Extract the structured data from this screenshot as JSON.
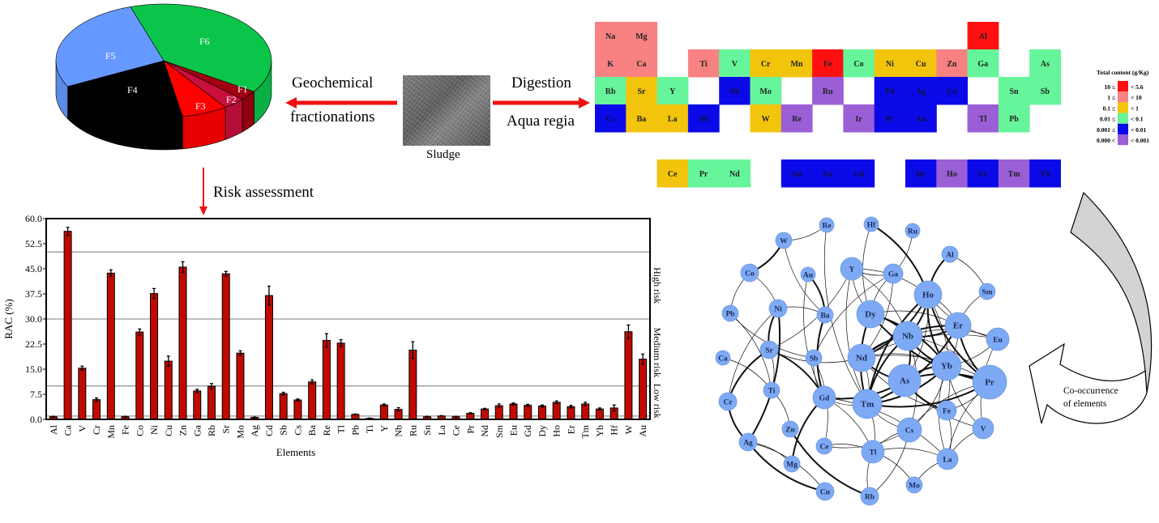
{
  "flow": {
    "left_arrow_top": "Geochemical",
    "left_arrow_bottom": "fractionations",
    "right_arrow_top": "Digestion",
    "right_arrow_bottom": "Aqua regia",
    "sample_label": "Sludge",
    "down_arrow_label": "Risk assessment",
    "network_arrow_line1": "Co-occurrence",
    "network_arrow_line2": "of elements",
    "arrow_color": "#ee1111"
  },
  "pie": {
    "type": "pie-3d",
    "slices": [
      {
        "label": "F6",
        "percent": 39.2,
        "color": "#0bc44a"
      },
      {
        "label": "F1",
        "percent": 2.8,
        "color": "#a00010"
      },
      {
        "label": "F2",
        "percent": 3.3,
        "color": "#c8103c"
      },
      {
        "label": "F3",
        "percent": 6.9,
        "color": "#ff0000"
      },
      {
        "label": "F4",
        "percent": 20.3,
        "color": "#000000"
      },
      {
        "label": "F5",
        "percent": 27.5,
        "color": "#6699ff"
      }
    ]
  },
  "periodic_table": {
    "legend_title": "Total content (g/Kg)",
    "levels": [
      {
        "low": "10 ≤",
        "high": "< 5.6",
        "color": "#ff1010"
      },
      {
        "low": "1 ≤",
        "high": "< 10",
        "color": "#f88282"
      },
      {
        "low": "0.1 ≤",
        "high": "< 1",
        "color": "#f2c40c"
      },
      {
        "low": "0.01 ≤",
        "high": "< 0.1",
        "color": "#66f59a"
      },
      {
        "low": "0.001 ≤",
        "high": "< 0.01",
        "color": "#0a0ae8"
      },
      {
        "low": "0.000 <",
        "high": "< 0.001",
        "color": "#9a5ed6"
      }
    ],
    "cells": [
      {
        "symbol": "Na",
        "level": 1
      },
      {
        "symbol": "Mg",
        "level": 1
      },
      {
        "symbol": "Al",
        "level": 0
      },
      {
        "symbol": "K",
        "level": 1
      },
      {
        "symbol": "Ca",
        "level": 1
      },
      {
        "symbol": "Ti",
        "level": 1
      },
      {
        "symbol": "V",
        "level": 3
      },
      {
        "symbol": "Cr",
        "level": 2
      },
      {
        "symbol": "Mn",
        "level": 2
      },
      {
        "symbol": "Fe",
        "level": 0
      },
      {
        "symbol": "Co",
        "level": 3
      },
      {
        "symbol": "Ni",
        "level": 2
      },
      {
        "symbol": "Cu",
        "level": 2
      },
      {
        "symbol": "Zn",
        "level": 1
      },
      {
        "symbol": "Ga",
        "level": 3
      },
      {
        "symbol": "As",
        "level": 3
      },
      {
        "symbol": "Rb",
        "level": 3
      },
      {
        "symbol": "Sr",
        "level": 2
      },
      {
        "symbol": "Y",
        "level": 3
      },
      {
        "symbol": "Nb",
        "level": 4
      },
      {
        "symbol": "Mo",
        "level": 3
      },
      {
        "symbol": "Ru",
        "level": 5
      },
      {
        "symbol": "Pd",
        "level": 4
      },
      {
        "symbol": "Ag",
        "level": 4
      },
      {
        "symbol": "Cd",
        "level": 4
      },
      {
        "symbol": "Sn",
        "level": 3
      },
      {
        "symbol": "Sb",
        "level": 3
      },
      {
        "symbol": "Cs",
        "level": 4
      },
      {
        "symbol": "Ba",
        "level": 2
      },
      {
        "symbol": "La",
        "level": 2
      },
      {
        "symbol": "Hf",
        "level": 4
      },
      {
        "symbol": "W",
        "level": 2
      },
      {
        "symbol": "Re",
        "level": 5
      },
      {
        "symbol": "Ir",
        "level": 5
      },
      {
        "symbol": "Pt",
        "level": 4
      },
      {
        "symbol": "Au",
        "level": 4
      },
      {
        "symbol": "Tl",
        "level": 5
      },
      {
        "symbol": "Pb",
        "level": 3
      },
      {
        "symbol": "Ce",
        "level": 2
      },
      {
        "symbol": "Pr",
        "level": 3
      },
      {
        "symbol": "Nd",
        "level": 3
      },
      {
        "symbol": "Sm",
        "level": 4
      },
      {
        "symbol": "Eu",
        "level": 4
      },
      {
        "symbol": "Gd",
        "level": 4
      },
      {
        "symbol": "Dy",
        "level": 4
      },
      {
        "symbol": "Ho",
        "level": 5
      },
      {
        "symbol": "Er",
        "level": 4
      },
      {
        "symbol": "Tm",
        "level": 5
      },
      {
        "symbol": "Yb",
        "level": 4
      }
    ]
  },
  "chart_data": {
    "type": "bar",
    "xlabel": "Elements",
    "ylabel": "RAC (%)",
    "ylim": [
      0,
      60
    ],
    "yticks": [
      "0.0",
      "7.5",
      "15.0",
      "22.5",
      "30.0",
      "37.5",
      "45.0",
      "52.5",
      "60.0"
    ],
    "bar_color": "#c00a00",
    "risk_thresholds": [
      1,
      10,
      30,
      50
    ],
    "risk_labels": [
      "Low risk",
      "Medium risk",
      "High risk"
    ],
    "categories": [
      "Al",
      "Ca",
      "V",
      "Cr",
      "Mn",
      "Fe",
      "Co",
      "Ni",
      "Cu",
      "Zn",
      "Ga",
      "Rb",
      "Sr",
      "Mo",
      "Ag",
      "Cd",
      "Sb",
      "Cs",
      "Ba",
      "Re",
      "Tl",
      "Pb",
      "Ti",
      "Y",
      "Nb",
      "Ru",
      "Sn",
      "La",
      "Ce",
      "Pr",
      "Nd",
      "Sm",
      "Eu",
      "Gd",
      "Dy",
      "Ho",
      "Er",
      "Tm",
      "Yb",
      "Hf",
      "W",
      "Au"
    ],
    "values": [
      0.8,
      56.2,
      15.3,
      5.9,
      43.7,
      0.8,
      26.1,
      37.6,
      17.4,
      45.5,
      8.5,
      9.9,
      43.5,
      19.8,
      0.6,
      37.0,
      7.7,
      5.8,
      11.2,
      23.6,
      22.8,
      1.5,
      0.3,
      4.3,
      3.0,
      20.7,
      0.8,
      1.0,
      0.8,
      1.8,
      3.1,
      4.1,
      4.6,
      4.2,
      4.0,
      5.1,
      3.8,
      4.6,
      3.1,
      3.4,
      26.2,
      18.0
    ],
    "errors": [
      0.1,
      1.2,
      0.6,
      0.5,
      1.0,
      0.1,
      0.9,
      1.5,
      1.5,
      1.6,
      0.5,
      0.8,
      0.7,
      0.7,
      0.1,
      2.8,
      0.4,
      0.3,
      0.6,
      2.0,
      1.0,
      0.1,
      0.1,
      0.3,
      0.5,
      2.5,
      0.1,
      0.1,
      0.1,
      0.2,
      0.2,
      0.5,
      0.3,
      0.3,
      0.3,
      0.4,
      0.4,
      0.5,
      0.3,
      0.9,
      2.0,
      1.5
    ]
  },
  "network": {
    "node_color": "#7eaaf5",
    "nodes": [
      "Re",
      "Hf",
      "Ru",
      "W",
      "Al",
      "Co",
      "Au",
      "Y",
      "Ga",
      "Sm",
      "Ho",
      "Pb",
      "Ni",
      "Ba",
      "Dy",
      "Er",
      "Eu",
      "Nb",
      "Sr",
      "Sb",
      "Ca",
      "Nd",
      "Yb",
      "As",
      "Pr",
      "Ti",
      "Cr",
      "Gd",
      "Tm",
      "Fe",
      "Cs",
      "V",
      "Zn",
      "Ag",
      "Ce",
      "Tl",
      "La",
      "Mg",
      "Mo",
      "Cu",
      "Rb"
    ],
    "edges": [
      [
        "Re",
        "W",
        1
      ],
      [
        "Re",
        "Tm",
        1
      ],
      [
        "W",
        "Co",
        2
      ],
      [
        "W",
        "Ba",
        1
      ],
      [
        "Co",
        "Ni",
        1
      ],
      [
        "Co",
        "Pb",
        1
      ],
      [
        "Au",
        "Ba",
        2
      ],
      [
        "Au",
        "Gd",
        1
      ],
      [
        "Hf",
        "Ho",
        2
      ],
      [
        "Hf",
        "Dy",
        1
      ],
      [
        "Ru",
        "Ga",
        1
      ],
      [
        "Al",
        "Ho",
        2
      ],
      [
        "Al",
        "Sm",
        1
      ],
      [
        "Y",
        "Ga",
        1
      ],
      [
        "Y",
        "Ho",
        1
      ],
      [
        "Y",
        "Dy",
        1
      ],
      [
        "Y",
        "Nb",
        1
      ],
      [
        "Y",
        "Tm",
        1
      ],
      [
        "Y",
        "Sr",
        1
      ],
      [
        "Ga",
        "Sb",
        1
      ],
      [
        "Ga",
        "Nd",
        1
      ],
      [
        "Ga",
        "Dy",
        1
      ],
      [
        "Ho",
        "Nb",
        2
      ],
      [
        "Ho",
        "Tm",
        2
      ],
      [
        "Ho",
        "Nd",
        2
      ],
      [
        "Ho",
        "Yb",
        2
      ],
      [
        "Ho",
        "As",
        1
      ],
      [
        "Ho",
        "Pr",
        2
      ],
      [
        "Ho",
        "Er",
        1
      ],
      [
        "Ho",
        "Eu",
        1
      ],
      [
        "Ho",
        "Fe",
        1
      ],
      [
        "Sm",
        "Er",
        1
      ],
      [
        "Ni",
        "Ba",
        1
      ],
      [
        "Ni",
        "Sr",
        2
      ],
      [
        "Ni",
        "Ag",
        2
      ],
      [
        "Ni",
        "Cr",
        1
      ],
      [
        "Pb",
        "Ti",
        1
      ],
      [
        "Pb",
        "Sb",
        1
      ],
      [
        "Ca",
        "Ti",
        1
      ],
      [
        "Sr",
        "Nd",
        1
      ],
      [
        "Sr",
        "Gd",
        2
      ],
      [
        "Sr",
        "Cr",
        2
      ],
      [
        "Sr",
        "Ti",
        1
      ],
      [
        "Ba",
        "Gd",
        2
      ],
      [
        "Sb",
        "Ce",
        1
      ],
      [
        "Sb",
        "Gd",
        1
      ],
      [
        "Dy",
        "Nb",
        2
      ],
      [
        "Dy",
        "Tm",
        2
      ],
      [
        "Dy",
        "Yb",
        2
      ],
      [
        "Dy",
        "Pr",
        2
      ],
      [
        "Dy",
        "Er",
        1
      ],
      [
        "Nb",
        "Tm",
        2
      ],
      [
        "Nb",
        "As",
        2
      ],
      [
        "Nb",
        "Er",
        2
      ],
      [
        "Nb",
        "Eu",
        1
      ],
      [
        "Nb",
        "Yb",
        2
      ],
      [
        "Nb",
        "Pr",
        1
      ],
      [
        "Nb",
        "Nd",
        1
      ],
      [
        "Nb",
        "Cs",
        1
      ],
      [
        "Er",
        "Nd",
        2
      ],
      [
        "Er",
        "Yb",
        1
      ],
      [
        "Er",
        "Pr",
        2
      ],
      [
        "Er",
        "Tm",
        2
      ],
      [
        "Eu",
        "Nd",
        1
      ],
      [
        "Eu",
        "Yb",
        1
      ],
      [
        "Eu",
        "V",
        1
      ],
      [
        "Nd",
        "Yb",
        1
      ],
      [
        "Nd",
        "As",
        2
      ],
      [
        "Nd",
        "Pr",
        1
      ],
      [
        "Nd",
        "Fe",
        1
      ],
      [
        "Nd",
        "Tm",
        1
      ],
      [
        "Yb",
        "As",
        2
      ],
      [
        "Yb",
        "Tm",
        2
      ],
      [
        "Yb",
        "V",
        1
      ],
      [
        "Yb",
        "Cs",
        1
      ],
      [
        "Yb",
        "La",
        1
      ],
      [
        "As",
        "Pr",
        2
      ],
      [
        "As",
        "Fe",
        2
      ],
      [
        "As",
        "Gd",
        2
      ],
      [
        "As",
        "V",
        1
      ],
      [
        "Pr",
        "Tm",
        2
      ],
      [
        "Pr",
        "Cs",
        1
      ],
      [
        "Pr",
        "Fe",
        1
      ],
      [
        "Pr",
        "La",
        1
      ],
      [
        "Ti",
        "Zn",
        1
      ],
      [
        "Cr",
        "Ag",
        2
      ],
      [
        "Gd",
        "Tl",
        1
      ],
      [
        "Gd",
        "Tm",
        1
      ],
      [
        "Gd",
        "La",
        1
      ],
      [
        "Gd",
        "Mg",
        2
      ],
      [
        "Tm",
        "Tl",
        1
      ],
      [
        "Tm",
        "Cs",
        1
      ],
      [
        "Cs",
        "Ce",
        1
      ],
      [
        "Cs",
        "Tl",
        1
      ],
      [
        "Fe",
        "La",
        1
      ],
      [
        "Tl",
        "Ce",
        1
      ],
      [
        "Tl",
        "Mo",
        1
      ],
      [
        "Tl",
        "Rb",
        1
      ],
      [
        "Tl",
        "La",
        1
      ],
      [
        "La",
        "Mo",
        1
      ],
      [
        "La",
        "V",
        1
      ],
      [
        "Ag",
        "Cu",
        2
      ],
      [
        "Ag",
        "Mg",
        1
      ],
      [
        "Zn",
        "Rb",
        2
      ],
      [
        "Ag",
        "Cu",
        1
      ],
      [
        "Rb",
        "Cs",
        1
      ]
    ]
  }
}
